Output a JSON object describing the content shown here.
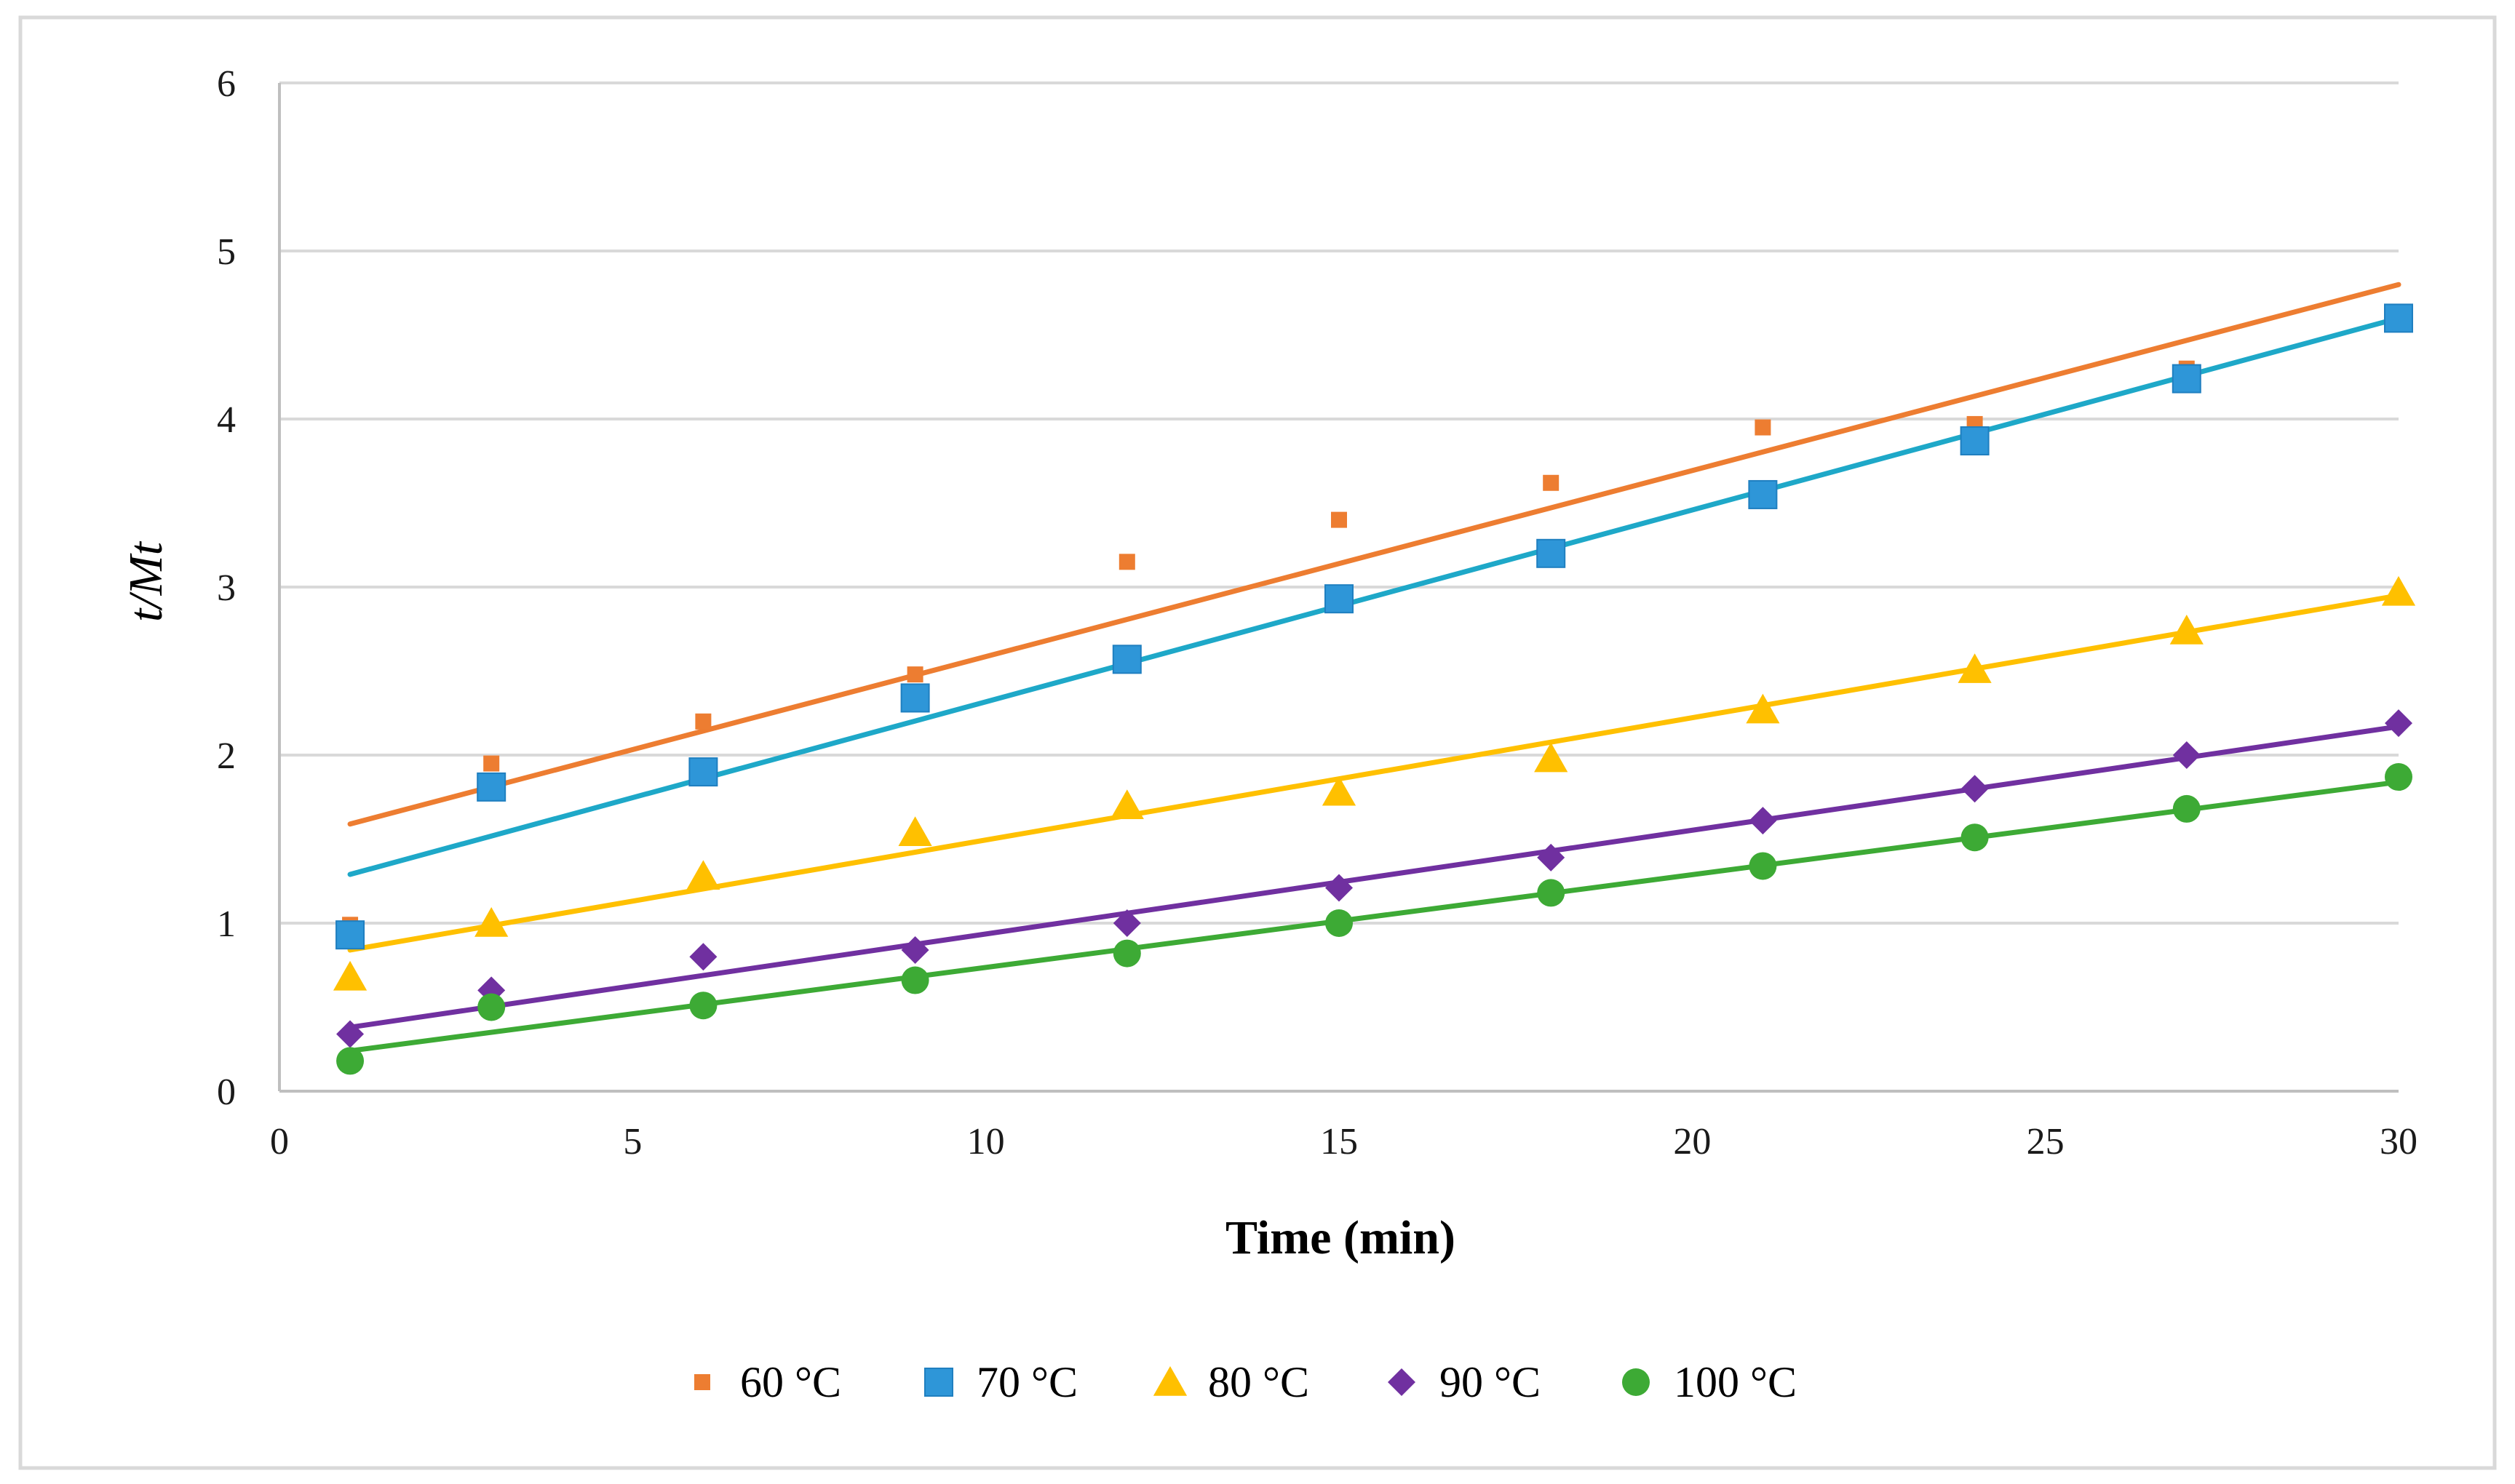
{
  "chart_data": {
    "type": "scatter",
    "title": "",
    "xlabel": "Time (min)",
    "ylabel": "t/Mt",
    "xlim": [
      0,
      30
    ],
    "ylim": [
      0,
      6
    ],
    "xticks": [
      0,
      5,
      10,
      15,
      20,
      25,
      30
    ],
    "yticks": [
      0,
      1,
      2,
      3,
      4,
      5,
      6
    ],
    "grid": "horizontal",
    "legend_position": "bottom",
    "series": [
      {
        "name": "60 °C",
        "marker": "small-square",
        "color": "#ED7D31",
        "line_color": "#ED7D31",
        "x": [
          1,
          3,
          6,
          9,
          12,
          15,
          18,
          21,
          24,
          27,
          30
        ],
        "y": [
          0.99,
          1.95,
          2.2,
          2.48,
          3.15,
          3.4,
          3.62,
          3.95,
          3.97,
          4.3,
          4.6
        ],
        "trendline": [
          [
            1,
            1.59
          ],
          [
            30,
            4.8
          ]
        ]
      },
      {
        "name": "70 °C",
        "marker": "square",
        "color": "#2E96D8",
        "line_color": "#1EA8C8",
        "x": [
          1,
          3,
          6,
          9,
          12,
          15,
          18,
          21,
          24,
          27,
          30
        ],
        "y": [
          0.93,
          1.81,
          1.9,
          2.34,
          2.57,
          2.93,
          3.2,
          3.55,
          3.87,
          4.24,
          4.6
        ],
        "trendline": [
          [
            1,
            1.29
          ],
          [
            30,
            4.6
          ]
        ]
      },
      {
        "name": "80 °C",
        "marker": "triangle",
        "color": "#FFC000",
        "line_color": "#FFC000",
        "x": [
          1,
          3,
          6,
          9,
          12,
          15,
          18,
          21,
          24,
          27,
          30
        ],
        "y": [
          0.68,
          1.0,
          1.28,
          1.54,
          1.7,
          1.78,
          1.98,
          2.27,
          2.51,
          2.74,
          2.97
        ],
        "trendline": [
          [
            1,
            0.84
          ],
          [
            30,
            2.95
          ]
        ]
      },
      {
        "name": "90 °C",
        "marker": "diamond",
        "color": "#7030A0",
        "line_color": "#7030A0",
        "x": [
          1,
          3,
          6,
          9,
          12,
          15,
          18,
          21,
          24,
          27,
          30
        ],
        "y": [
          0.34,
          0.6,
          0.8,
          0.84,
          1.0,
          1.21,
          1.39,
          1.61,
          1.8,
          2.0,
          2.19
        ],
        "trendline": [
          [
            1,
            0.38
          ],
          [
            30,
            2.17
          ]
        ]
      },
      {
        "name": "100 °C",
        "marker": "circle",
        "color": "#3DAA35",
        "line_color": "#3DAA35",
        "x": [
          1,
          3,
          6,
          9,
          12,
          15,
          18,
          21,
          24,
          27,
          30
        ],
        "y": [
          0.18,
          0.5,
          0.51,
          0.66,
          0.82,
          1.0,
          1.18,
          1.34,
          1.51,
          1.68,
          1.87
        ],
        "trendline": [
          [
            1,
            0.24
          ],
          [
            30,
            1.84
          ]
        ]
      }
    ]
  }
}
